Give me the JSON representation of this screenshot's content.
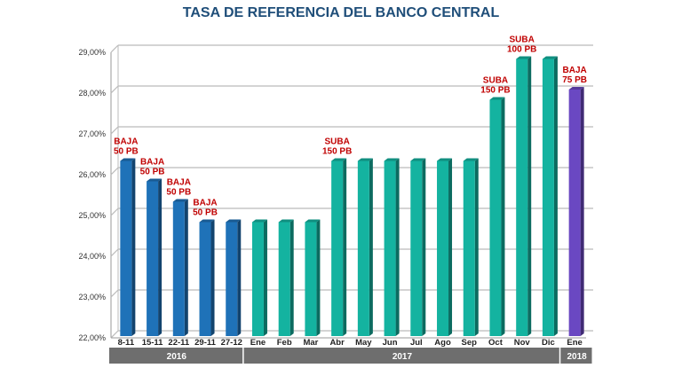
{
  "chart_data": {
    "type": "bar",
    "title": "TASA DE REFERENCIA DEL BANCO CENTRAL",
    "categories": [
      "8-11",
      "15-11",
      "22-11",
      "29-11",
      "27-12",
      "Ene",
      "Feb",
      "Mar",
      "Abr",
      "May",
      "Jun",
      "Jul",
      "Ago",
      "Sep",
      "Oct",
      "Nov",
      "Dic",
      "Ene"
    ],
    "values": [
      26.25,
      25.75,
      25.25,
      24.75,
      24.75,
      24.75,
      24.75,
      24.75,
      26.25,
      26.25,
      26.25,
      26.25,
      26.25,
      26.25,
      27.75,
      28.75,
      28.75,
      28.0
    ],
    "groups": [
      {
        "label": "2016",
        "start": 0,
        "end": 4,
        "color": "#1f72b8"
      },
      {
        "label": "2017",
        "start": 5,
        "end": 16,
        "color": "#14b3a0"
      },
      {
        "label": "2018",
        "start": 17,
        "end": 17,
        "color": "#6a48c2"
      }
    ],
    "yticks": [
      "22,00%",
      "23,00%",
      "24,00%",
      "25,00%",
      "26,00%",
      "27,00%",
      "28,00%",
      "29,00%"
    ],
    "ylim": [
      22,
      29
    ],
    "grid": true,
    "annotations": [
      {
        "index": 0,
        "lines": [
          "BAJA",
          "50 PB"
        ]
      },
      {
        "index": 1,
        "lines": [
          "BAJA",
          "50 PB"
        ]
      },
      {
        "index": 2,
        "lines": [
          "BAJA",
          "50 PB"
        ]
      },
      {
        "index": 3,
        "lines": [
          "BAJA",
          "50 PB"
        ]
      },
      {
        "index": 8,
        "lines": [
          "SUBA",
          "150 PB"
        ]
      },
      {
        "index": 14,
        "lines": [
          "SUBA",
          "150 PB"
        ]
      },
      {
        "index": 15,
        "lines": [
          "SUBA",
          "100 PB"
        ]
      },
      {
        "index": 17,
        "lines": [
          "BAJA",
          "75 PB"
        ]
      }
    ],
    "annotation_color": "#c00000"
  }
}
